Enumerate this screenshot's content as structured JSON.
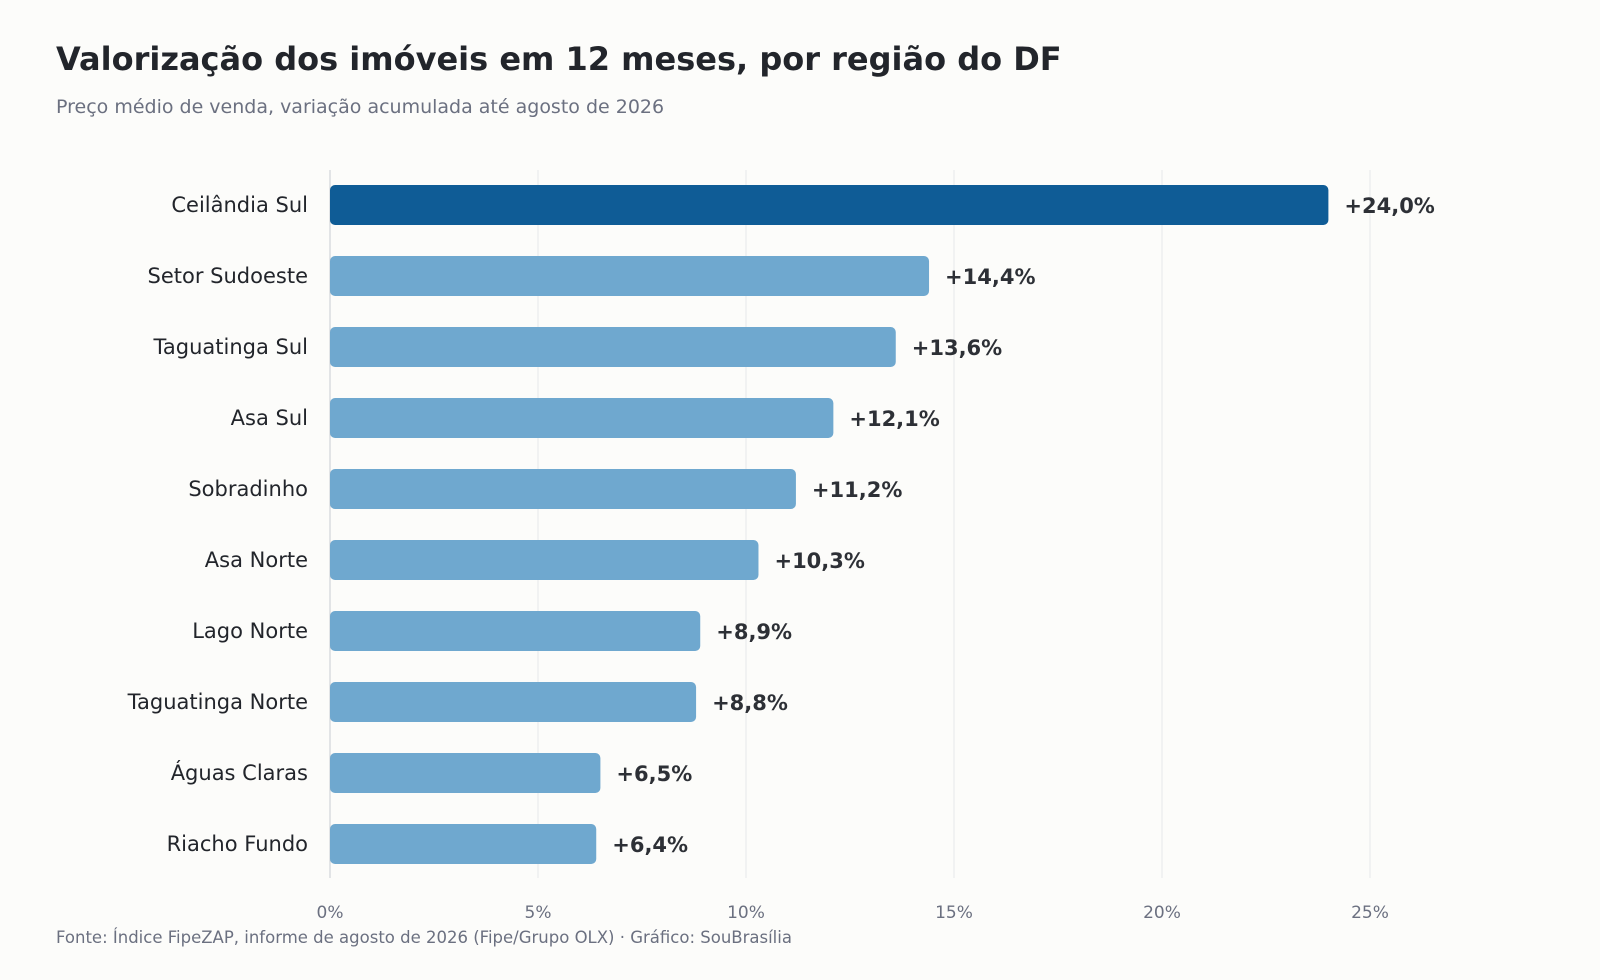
{
  "chart_data": {
    "type": "bar",
    "orientation": "horizontal",
    "title": "Valorização dos imóveis em 12 meses, por região do DF",
    "subtitle": "Preço médio de venda, variação acumulada até agosto de 2026",
    "source": "Fonte: Índice FipeZAP, informe de agosto de 2026 (Fipe/Grupo OLX)  ·  Gráfico: SouBrasília",
    "categories": [
      "Ceilândia Sul",
      "Setor Sudoeste",
      "Taguatinga Sul",
      "Asa Sul",
      "Sobradinho",
      "Asa Norte",
      "Lago Norte",
      "Taguatinga Norte",
      "Águas Claras",
      "Riacho Fundo"
    ],
    "values": [
      24.0,
      14.4,
      13.6,
      12.1,
      11.2,
      10.3,
      8.9,
      8.8,
      6.5,
      6.4
    ],
    "value_labels": [
      "+24,0%",
      "+14,4%",
      "+13,6%",
      "+12,1%",
      "+11,2%",
      "+10,3%",
      "+8,9%",
      "+8,8%",
      "+6,5%",
      "+6,4%"
    ],
    "x_ticks": [
      0,
      5,
      10,
      15,
      20,
      25
    ],
    "x_tick_labels": [
      "0%",
      "5%",
      "10%",
      "15%",
      "20%",
      "25%"
    ],
    "xlim": [
      0,
      30
    ],
    "grid": "vertical",
    "highlight_color": "#0f5c96",
    "bar_color": "#6fa8cf"
  }
}
